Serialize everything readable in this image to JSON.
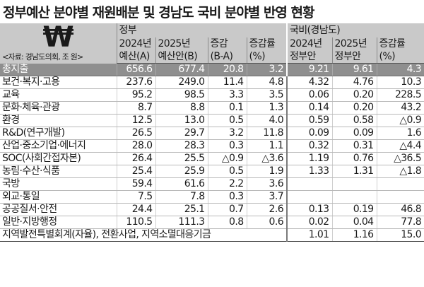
{
  "title": "정부예산 분야별 재원배분 및 경남도 국비 분야별 반영 현황",
  "header": {
    "symbol": "₩",
    "unit_note": "<자료: 경남도의회, 조 원>",
    "group_gov": "정부",
    "group_gn": "국비(경남도)",
    "cols": [
      {
        "l1": "2024년",
        "l2": "예산(A)"
      },
      {
        "l1": "2025년",
        "l2": "예산안(B)"
      },
      {
        "l1": "증감",
        "l2": "(B-A)"
      },
      {
        "l1": "증감률",
        "l2": "(%)"
      },
      {
        "l1": "2024년",
        "l2": "정부안"
      },
      {
        "l1": "2025년",
        "l2": "정부안"
      },
      {
        "l1": "증감률",
        "l2": "(%)"
      }
    ]
  },
  "rows": [
    {
      "label": "총지출",
      "v": [
        "656.6",
        "677.4",
        "20.8",
        "3.2",
        "9.21",
        "9.61",
        "4.3"
      ]
    },
    {
      "label": "보건·복지·고용",
      "v": [
        "237.6",
        "249.0",
        "11.4",
        "4.8",
        "4.32",
        "4.76",
        "10.3"
      ]
    },
    {
      "label": "교육",
      "v": [
        "95.2",
        "98.5",
        "3.3",
        "3.5",
        "0.06",
        "0.20",
        "228.5"
      ]
    },
    {
      "label": "문화·체육·관광",
      "v": [
        "8.7",
        "8.8",
        "0.1",
        "1.3",
        "0.14",
        "0.20",
        "43.2"
      ]
    },
    {
      "label": "환경",
      "v": [
        "12.5",
        "13.0",
        "0.5",
        "4.0",
        "0.59",
        "0.58",
        "△0.9"
      ]
    },
    {
      "label": "R&D(연구개발)",
      "v": [
        "26.5",
        "29.7",
        "3.2",
        "11.8",
        "0.09",
        "0.09",
        "1.6"
      ]
    },
    {
      "label": "산업·중소기업·에너지",
      "v": [
        "28.0",
        "28.3",
        "0.3",
        "1.1",
        "0.32",
        "0.31",
        "△4.4"
      ]
    },
    {
      "label": "SOC(사회간접자본)",
      "v": [
        "26.4",
        "25.5",
        "△0.9",
        "△3.6",
        "1.19",
        "0.76",
        "△36.5"
      ]
    },
    {
      "label": "농림·수산·식품",
      "v": [
        "25.4",
        "25.9",
        "0.5",
        "1.9",
        "1.33",
        "1.31",
        "△1.8"
      ]
    },
    {
      "label": "국방",
      "v": [
        "59.4",
        "61.6",
        "2.2",
        "3.6",
        "",
        "",
        ""
      ]
    },
    {
      "label": "외교·통일",
      "v": [
        "7.5",
        "7.8",
        "0.3",
        "3.7",
        "",
        "",
        ""
      ]
    },
    {
      "label": "공공질서·안전",
      "v": [
        "24.4",
        "25.1",
        "0.7",
        "2.6",
        "0.13",
        "0.19",
        "46.8"
      ]
    },
    {
      "label": "일반·지방행정",
      "v": [
        "110.5",
        "111.3",
        "0.8",
        "0.6",
        "0.02",
        "0.04",
        "77.8"
      ]
    }
  ],
  "last_row": {
    "label": "지역발전특별회계(자율), 전환사업, 지역소멸대응기금",
    "v": [
      "1.01",
      "1.16",
      "15.0"
    ]
  }
}
